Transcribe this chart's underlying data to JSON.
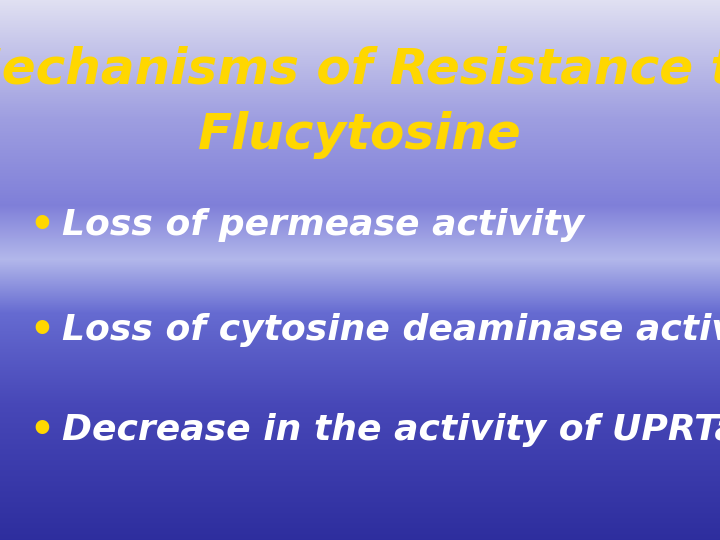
{
  "title_line1": "Mechanisms of Resistance to",
  "title_line2": "Flucytosine",
  "title_color": "#FFD700",
  "bullet_color": "#FFD700",
  "bullet_text_color": "#FFFFFF",
  "bullets": [
    "Loss of permease activity",
    "Loss of cytosine deaminase activity",
    "Decrease in the activity of UPRTase"
  ],
  "title_fontsize": 36,
  "bullet_fontsize": 26,
  "figsize": [
    7.2,
    5.4
  ],
  "dpi": 100
}
